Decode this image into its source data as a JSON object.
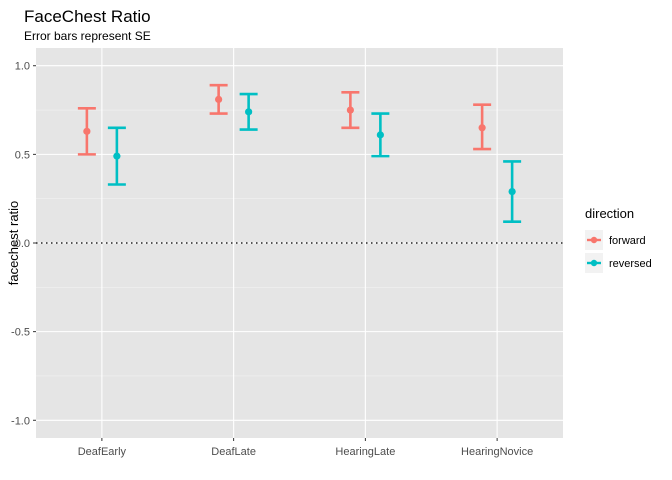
{
  "chart_data": {
    "type": "scatter",
    "subtype": "point with error bars",
    "title": "FaceChest Ratio",
    "subtitle": "Error bars represent SE",
    "xlabel": "",
    "ylabel": "facechest ratio",
    "categories": [
      "DeafEarly",
      "DeafLate",
      "HearingLate",
      "HearingNovice"
    ],
    "ylim": [
      -1.1,
      1.1
    ],
    "yticks": [
      -1.0,
      -0.5,
      0.0,
      0.5,
      1.0
    ],
    "ytick_labels": [
      "-1.0",
      "-0.5",
      "0.0",
      "0.5",
      "1.0"
    ],
    "reference_line": {
      "y": 0,
      "style": "dotted"
    },
    "grid": true,
    "legend": {
      "title": "direction",
      "position": "right"
    },
    "series": [
      {
        "name": "forward",
        "color": "#F8766D",
        "values": [
          0.63,
          0.81,
          0.75,
          0.65
        ],
        "se_low": [
          0.5,
          0.73,
          0.65,
          0.53
        ],
        "se_high": [
          0.76,
          0.89,
          0.85,
          0.78
        ]
      },
      {
        "name": "reversed",
        "color": "#00BFC4",
        "values": [
          0.49,
          0.74,
          0.61,
          0.29
        ],
        "se_low": [
          0.33,
          0.64,
          0.49,
          0.12
        ],
        "se_high": [
          0.65,
          0.84,
          0.73,
          0.46
        ]
      }
    ]
  }
}
